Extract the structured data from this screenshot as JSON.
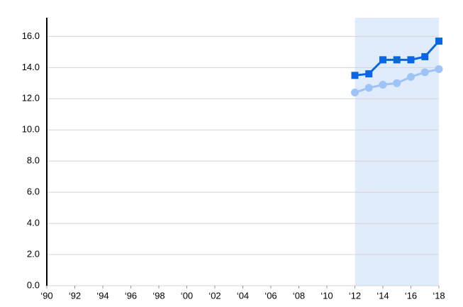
{
  "chart_data": {
    "type": "line",
    "x": [
      2012,
      2013,
      2014,
      2015,
      2016,
      2017,
      2018
    ],
    "series": [
      {
        "color": "#0a66e4",
        "marker": "square",
        "values": [
          13.5,
          13.6,
          14.5,
          14.5,
          14.5,
          14.7,
          15.7
        ]
      },
      {
        "color": "#9ec3f6",
        "marker": "circle",
        "values": [
          12.4,
          12.7,
          12.9,
          13.0,
          13.4,
          13.7,
          13.9
        ]
      }
    ],
    "highlight_x": [
      2012,
      2018
    ],
    "highlight_color": "#e0ecfc",
    "xlim": [
      1990,
      2018
    ],
    "xticks": [
      {
        "value": 1990,
        "label": "‘90"
      },
      {
        "value": 1992,
        "label": "‘92"
      },
      {
        "value": 1994,
        "label": "‘94"
      },
      {
        "value": 1996,
        "label": "‘96"
      },
      {
        "value": 1998,
        "label": "‘98"
      },
      {
        "value": 2000,
        "label": "‘00"
      },
      {
        "value": 2002,
        "label": "‘02"
      },
      {
        "value": 2004,
        "label": "‘04"
      },
      {
        "value": 2006,
        "label": "‘06"
      },
      {
        "value": 2008,
        "label": "‘08"
      },
      {
        "value": 2010,
        "label": "‘10"
      },
      {
        "value": 2012,
        "label": "‘12"
      },
      {
        "value": 2014,
        "label": "‘14"
      },
      {
        "value": 2016,
        "label": "‘16"
      },
      {
        "value": 2018,
        "label": "‘18"
      }
    ],
    "ylim": [
      0,
      17.2
    ],
    "yticks": [
      {
        "value": 0,
        "label": "0.0"
      },
      {
        "value": 2,
        "label": "2.0"
      },
      {
        "value": 4,
        "label": "4.0"
      },
      {
        "value": 6,
        "label": "6.0"
      },
      {
        "value": 8,
        "label": "8.0"
      },
      {
        "value": 10,
        "label": "10.0"
      },
      {
        "value": 12,
        "label": "12.0"
      },
      {
        "value": 14,
        "label": "14.0"
      },
      {
        "value": 16,
        "label": "16.0"
      }
    ],
    "grid": true
  }
}
